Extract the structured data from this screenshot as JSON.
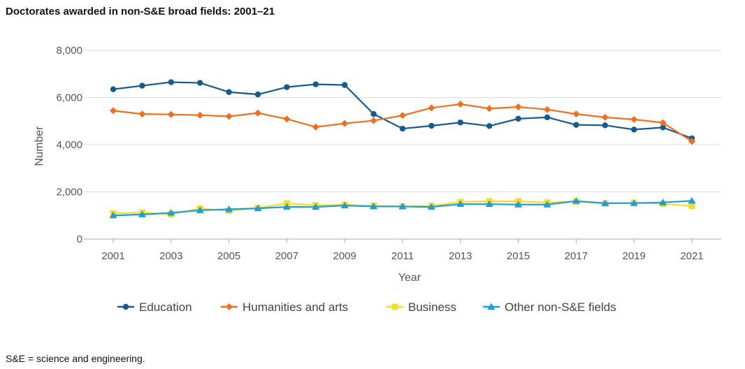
{
  "chart_data": {
    "type": "line",
    "title": "Doctorates awarded in non-S&E broad fields: 2001–21",
    "xlabel": "Year",
    "ylabel": "Number",
    "ylim": [
      0,
      8000
    ],
    "yticks": [
      0,
      2000,
      4000,
      6000,
      8000
    ],
    "ytick_labels": [
      "0",
      "2,000",
      "4,000",
      "6,000",
      "8,000"
    ],
    "xticks": [
      2001,
      2003,
      2005,
      2007,
      2009,
      2011,
      2013,
      2015,
      2017,
      2019,
      2021
    ],
    "xtick_labels": [
      "2001",
      "2003",
      "2005",
      "2007",
      "2009",
      "2011",
      "2013",
      "2015",
      "2017",
      "2019",
      "2021"
    ],
    "x": [
      2001,
      2002,
      2003,
      2004,
      2005,
      2006,
      2007,
      2008,
      2009,
      2010,
      2011,
      2012,
      2013,
      2014,
      2015,
      2016,
      2017,
      2018,
      2019,
      2020,
      2021
    ],
    "grid": true,
    "legend_position": "bottom",
    "series": [
      {
        "name": "Education",
        "color": "#165a8e",
        "marker": "circle",
        "values": [
          6350,
          6500,
          6650,
          6620,
          6230,
          6130,
          6440,
          6560,
          6530,
          5300,
          4680,
          4800,
          4940,
          4790,
          5100,
          5160,
          4840,
          4820,
          4640,
          4730,
          4270
        ]
      },
      {
        "name": "Humanities and arts",
        "color": "#ef6e1f",
        "marker": "diamond",
        "values": [
          5440,
          5300,
          5280,
          5250,
          5200,
          5340,
          5090,
          4750,
          4900,
          5020,
          5240,
          5560,
          5720,
          5530,
          5600,
          5490,
          5300,
          5160,
          5070,
          4930,
          4140
        ]
      },
      {
        "name": "Business",
        "color": "#f4dc2c",
        "marker": "square",
        "values": [
          1090,
          1120,
          1050,
          1290,
          1200,
          1320,
          1510,
          1430,
          1450,
          1410,
          1380,
          1400,
          1570,
          1600,
          1600,
          1550,
          1590,
          1500,
          1540,
          1490,
          1400
        ]
      },
      {
        "name": "Other non-S&E fields",
        "color": "#1f9ed6",
        "marker": "triangle",
        "values": [
          1000,
          1040,
          1110,
          1220,
          1260,
          1300,
          1360,
          1360,
          1420,
          1380,
          1380,
          1360,
          1480,
          1480,
          1460,
          1460,
          1610,
          1520,
          1520,
          1550,
          1620
        ]
      }
    ]
  },
  "footnote": "S&E = science and engineering."
}
